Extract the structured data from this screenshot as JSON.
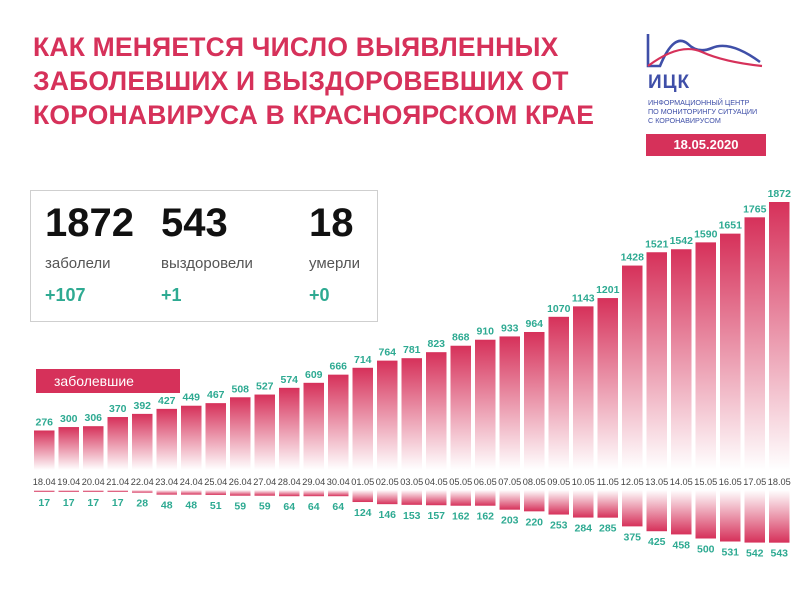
{
  "title": {
    "line1": "КАК МЕНЯЕТСЯ ЧИСЛО ВЫЯВЛЕННЫХ",
    "line2": "ЗАБОЛЕВШИХ И ВЫЗДОРОВЕВШИХ ОТ",
    "line3": "КОРОНАВИРУСА В КРАСНОЯРСКОМ КРАЕ"
  },
  "logo": {
    "name": "ИЦК",
    "subtitle_line1": "ИНФОРМАЦИОННЫЙ ЦЕНТР",
    "subtitle_line2": "ПО МОНИТОРИНГУ СИТУАЦИИ",
    "subtitle_line3": "С КОРОНАВИРУСОМ",
    "date": "18.05.2020"
  },
  "stats": {
    "cases": {
      "value": "1872",
      "label": "заболели",
      "delta": "+107"
    },
    "recovered": {
      "value": "543",
      "label": "выздоровели",
      "delta": "+1"
    },
    "deaths": {
      "value": "18",
      "label": "умерли",
      "delta": "+0"
    }
  },
  "legend": {
    "cases_label": "заболевшие"
  },
  "colors": {
    "accent": "#d6315a",
    "teal": "#2eaa92",
    "logo_blue": "#3f4fa8"
  },
  "chart_data": {
    "type": "bar",
    "categories": [
      "18.04",
      "19.04",
      "20.04",
      "21.04",
      "22.04",
      "23.04",
      "24.04",
      "25.04",
      "26.04",
      "27.04",
      "28.04",
      "29.04",
      "30.04",
      "01.05",
      "02.05",
      "03.05",
      "04.05",
      "05.05",
      "06.05",
      "07.05",
      "08.05",
      "09.05",
      "10.05",
      "11.05",
      "12.05",
      "13.05",
      "14.05",
      "15.05",
      "16.05",
      "17.05",
      "18.05"
    ],
    "series": [
      {
        "name": "заболевшие",
        "values": [
          276,
          300,
          306,
          370,
          392,
          427,
          449,
          467,
          508,
          527,
          574,
          609,
          666,
          714,
          764,
          781,
          823,
          868,
          910,
          933,
          964,
          1070,
          1143,
          1201,
          1428,
          1521,
          1542,
          1590,
          1651,
          1765,
          1872
        ]
      },
      {
        "values": [
          17,
          17,
          17,
          17,
          28,
          48,
          48,
          51,
          59,
          59,
          64,
          64,
          64,
          124,
          146,
          153,
          157,
          162,
          162,
          203,
          220,
          253,
          284,
          285,
          375,
          425,
          458,
          500,
          531,
          542,
          543
        ]
      }
    ]
  }
}
